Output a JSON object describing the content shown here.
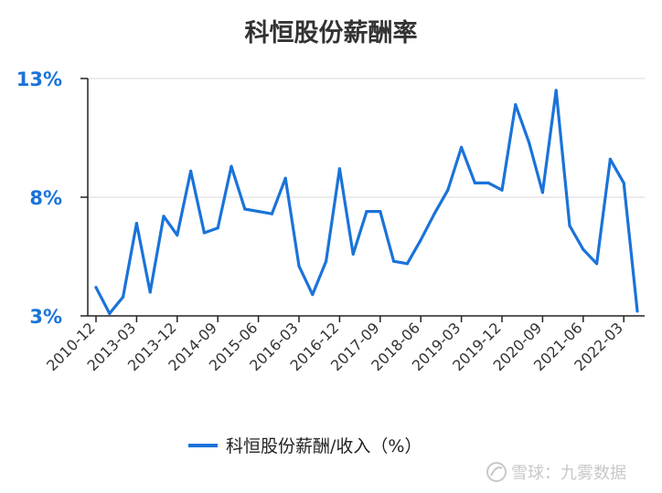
{
  "chart_data": {
    "type": "line",
    "title": "科恒股份薪酬率",
    "xlabel": "",
    "ylabel": "",
    "ylim": [
      3,
      13
    ],
    "y_ticks": [
      "13%",
      "8%",
      "3%"
    ],
    "grid": true,
    "legend_position": "bottom",
    "x_tick_labels": [
      "2010-12",
      "2013-03",
      "2013-12",
      "2014-09",
      "2015-06",
      "2016-03",
      "2016-12",
      "2017-09",
      "2018-06",
      "2019-03",
      "2019-12",
      "2020-09",
      "2021-06",
      "2022-03"
    ],
    "series": [
      {
        "name": "科恒股份薪酬/收入（%）",
        "color": "#1a73d9",
        "values": [
          4.2,
          3.1,
          3.8,
          6.9,
          4.0,
          7.2,
          6.4,
          9.1,
          6.5,
          6.7,
          9.3,
          7.5,
          7.4,
          7.3,
          8.8,
          5.1,
          3.9,
          5.3,
          9.2,
          5.6,
          7.4,
          7.4,
          5.3,
          5.2,
          6.2,
          7.3,
          8.3,
          10.1,
          8.6,
          8.6,
          8.3,
          11.9,
          10.3,
          8.2,
          12.5,
          6.8,
          5.8,
          5.2,
          9.6,
          8.6,
          3.2
        ]
      }
    ]
  },
  "watermark": {
    "text": "雪球：九雾数据",
    "logo_icon": "snowball-logo-icon"
  }
}
